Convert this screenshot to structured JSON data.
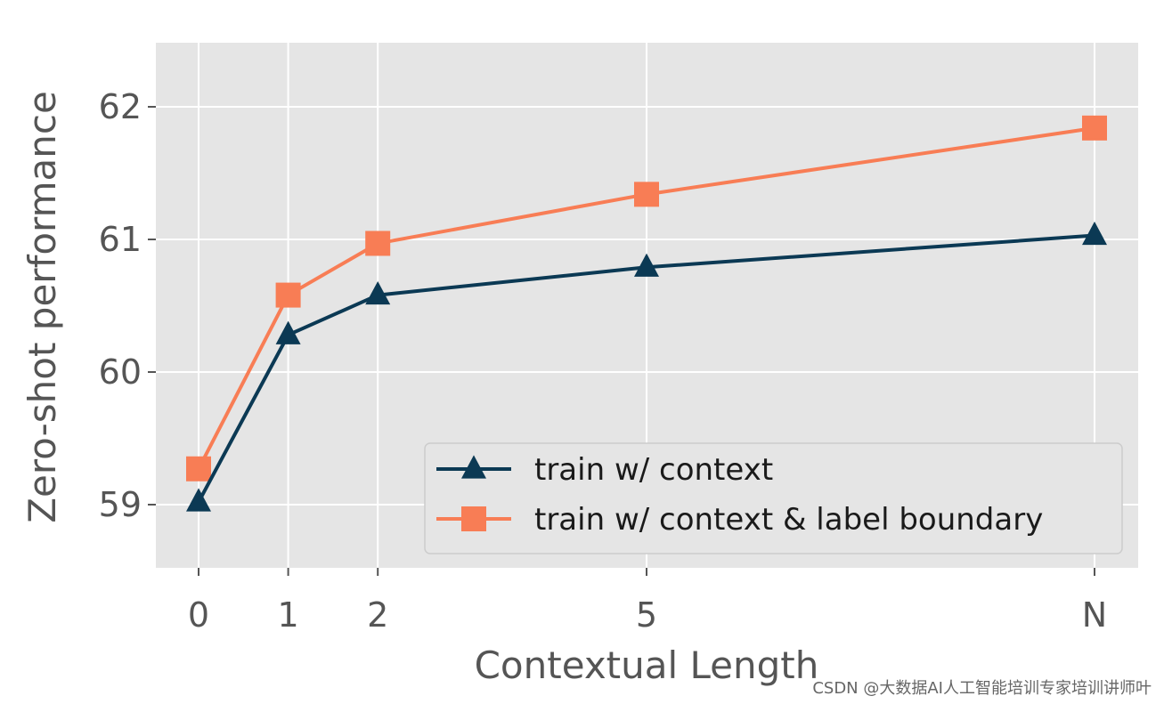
{
  "chart_data": {
    "type": "line",
    "title": "",
    "xlabel": "Contextual Length",
    "ylabel": "Zero-shot performance",
    "categories": [
      "0",
      "1",
      "2",
      "5",
      "N"
    ],
    "x_positions": [
      0,
      1,
      2,
      5,
      10
    ],
    "ylim": [
      58.5,
      62.5
    ],
    "yticks": [
      59,
      60,
      61,
      62
    ],
    "grid": true,
    "legend_position": "lower-right",
    "series": [
      {
        "name": "train w/ context",
        "marker": "triangle",
        "color": "#0b3954",
        "values": [
          59.02,
          60.28,
          60.58,
          60.79,
          61.03
        ]
      },
      {
        "name": "train w/ context & label boundary",
        "marker": "square",
        "color": "#f87d55",
        "values": [
          59.27,
          60.58,
          60.97,
          61.34,
          61.84
        ]
      }
    ]
  },
  "watermark": "CSDN @大数据AI人工智能培训专家培训讲师叶"
}
